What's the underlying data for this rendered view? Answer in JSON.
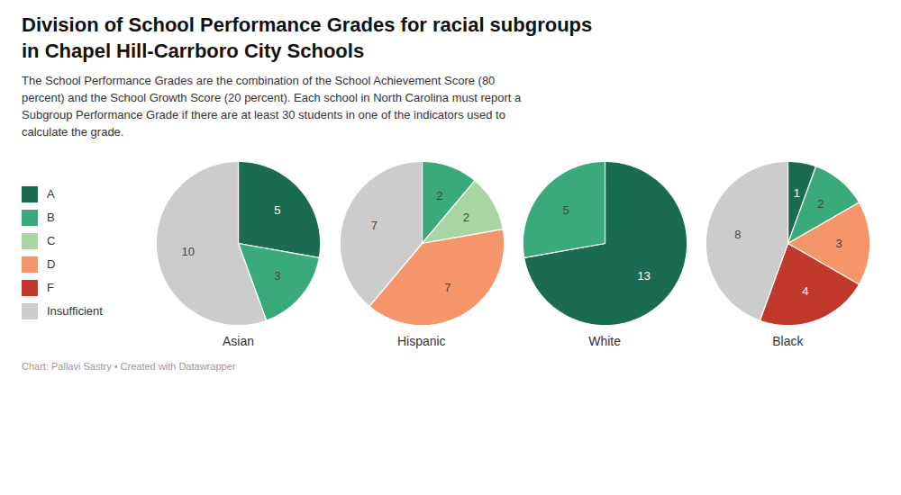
{
  "chart_data": {
    "type": "pie",
    "title": "Division of School Performance Grades for racial subgroups\nin Chapel Hill-Carrboro City Schools",
    "subtitle": "The School Performance Grades are the combination of the School Achievement Score (80\npercent) and the School Growth Score (20 percent). Each school in North Carolina must report a\nSubgroup Performance Grade if there are at least 30 students in one of the indicators used to\ncalculate the grade.",
    "caption": "Chart: Pallavi Sastry • Created with Datawrapper",
    "categories": [
      "A",
      "B",
      "C",
      "D",
      "F",
      "Insufficient"
    ],
    "colors": [
      "#1a6b52",
      "#3aaa7a",
      "#a8d5a2",
      "#f4956a",
      "#c0392b",
      "#cccccc"
    ],
    "series": [
      {
        "name": "Asian",
        "values": [
          5,
          3,
          0,
          0,
          0,
          10
        ]
      },
      {
        "name": "Hispanic",
        "values": [
          0,
          2,
          2,
          7,
          0,
          7
        ]
      },
      {
        "name": "White",
        "values": [
          13,
          5,
          0,
          0,
          0,
          0
        ]
      },
      {
        "name": "Black",
        "values": [
          1,
          2,
          0,
          3,
          4,
          8
        ]
      }
    ],
    "data_labels": true,
    "legend": "left"
  }
}
